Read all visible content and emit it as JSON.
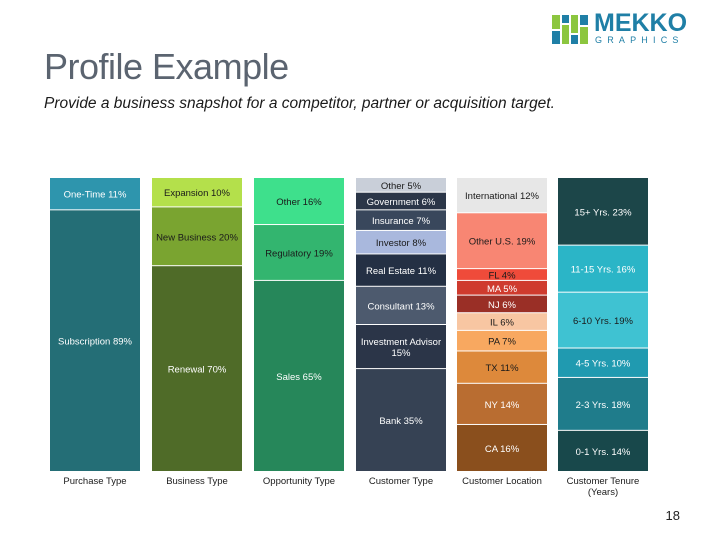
{
  "header": {
    "title": "Profile Example",
    "subtitle": "Provide a business snapshot for a competitor, partner or acquisition target."
  },
  "logo": {
    "word": "MEKKO",
    "sub": "GRAPHICS",
    "icon": "mekko-logo-icon"
  },
  "page_number": "18",
  "chart_data": {
    "type": "bar",
    "subtype": "stacked-100",
    "ylim": [
      0,
      100
    ],
    "grid": false,
    "legend": "none",
    "categories": [
      "Purchase Type",
      "Business Type",
      "Opportunity Type",
      "Customer Type",
      "Customer Location",
      "Customer Tenure (Years)"
    ],
    "columns": [
      {
        "category": "Purchase Type",
        "segments": [
          {
            "label": "One-Time 11%",
            "value": 11,
            "color": "#2e95ad",
            "text": "#ffffff"
          },
          {
            "label": "Subscription 89%",
            "value": 89,
            "color": "#246e76",
            "text": "#ffffff"
          }
        ]
      },
      {
        "category": "Business Type",
        "segments": [
          {
            "label": "Expansion 10%",
            "value": 10,
            "color": "#b4e04b",
            "text": "#1a1a1a"
          },
          {
            "label": "New Business 20%",
            "value": 20,
            "color": "#7aa430",
            "text": "#1a1a1a"
          },
          {
            "label": "Renewal 70%",
            "value": 70,
            "color": "#4f6b28",
            "text": "#ffffff"
          }
        ]
      },
      {
        "category": "Opportunity Type",
        "segments": [
          {
            "label": "Other 16%",
            "value": 16,
            "color": "#3ee08c",
            "text": "#1a1a1a"
          },
          {
            "label": "Regulatory 19%",
            "value": 19,
            "color": "#33b56f",
            "text": "#1a1a1a"
          },
          {
            "label": "Sales 65%",
            "value": 65,
            "color": "#26875a",
            "text": "#ffffff"
          }
        ]
      },
      {
        "category": "Customer Type",
        "segments": [
          {
            "label": "Other 5%",
            "value": 5,
            "color": "#c9cfd9",
            "text": "#1a1a1a"
          },
          {
            "label": "Government 6%",
            "value": 6,
            "color": "#2b3648",
            "text": "#ffffff"
          },
          {
            "label": "Insurance 7%",
            "value": 7,
            "color": "#39475c",
            "text": "#ffffff"
          },
          {
            "label": "Investor 8%",
            "value": 8,
            "color": "#a9b8dd",
            "text": "#1a1a1a"
          },
          {
            "label": "Real Estate 11%",
            "value": 11,
            "color": "#243044",
            "text": "#ffffff"
          },
          {
            "label": "Consultant 13%",
            "value": 13,
            "color": "#4d5a6e",
            "text": "#ffffff"
          },
          {
            "label": "Investment Advisor 15%",
            "value": 15,
            "color": "#2b3548",
            "text": "#ffffff"
          },
          {
            "label": "Bank 35%",
            "value": 35,
            "color": "#364254",
            "text": "#ffffff"
          }
        ]
      },
      {
        "category": "Customer Location",
        "segments": [
          {
            "label": "International 12%",
            "value": 12,
            "color": "#e7e7e7",
            "text": "#1a1a1a"
          },
          {
            "label": "Other U.S. 19%",
            "value": 19,
            "color": "#f88673",
            "text": "#1a1a1a"
          },
          {
            "label": "FL 4%",
            "value": 4,
            "color": "#ef4b3a",
            "text": "#1a1a1a"
          },
          {
            "label": "MA 5%",
            "value": 5,
            "color": "#cf3b2e",
            "text": "#ffffff"
          },
          {
            "label": "NJ 6%",
            "value": 6,
            "color": "#9a2f26",
            "text": "#ffffff"
          },
          {
            "label": "IL 6%",
            "value": 6,
            "color": "#f8c6a2",
            "text": "#1a1a1a"
          },
          {
            "label": "PA 7%",
            "value": 7,
            "color": "#f8a860",
            "text": "#1a1a1a"
          },
          {
            "label": "TX 11%",
            "value": 11,
            "color": "#dd893b",
            "text": "#1a1a1a"
          },
          {
            "label": "NY 14%",
            "value": 14,
            "color": "#b96d31",
            "text": "#ffffff"
          },
          {
            "label": "CA 16%",
            "value": 16,
            "color": "#8a4f1d",
            "text": "#ffffff"
          }
        ]
      },
      {
        "category": "Customer Tenure (Years)",
        "segments": [
          {
            "label": "15+ Yrs. 23%",
            "value": 23,
            "color": "#1c4649",
            "text": "#ffffff"
          },
          {
            "label": "11-15 Yrs. 16%",
            "value": 16,
            "color": "#2bb5c7",
            "text": "#ffffff"
          },
          {
            "label": "6-10 Yrs. 19%",
            "value": 19,
            "color": "#3fc2d2",
            "text": "#1a1a1a"
          },
          {
            "label": "4-5 Yrs. 10%",
            "value": 10,
            "color": "#209ab0",
            "text": "#ffffff"
          },
          {
            "label": "2-3 Yrs. 18%",
            "value": 18,
            "color": "#1f7c8b",
            "text": "#ffffff"
          },
          {
            "label": "0-1 Yrs. 14%",
            "value": 14,
            "color": "#18484b",
            "text": "#ffffff"
          }
        ]
      }
    ]
  }
}
